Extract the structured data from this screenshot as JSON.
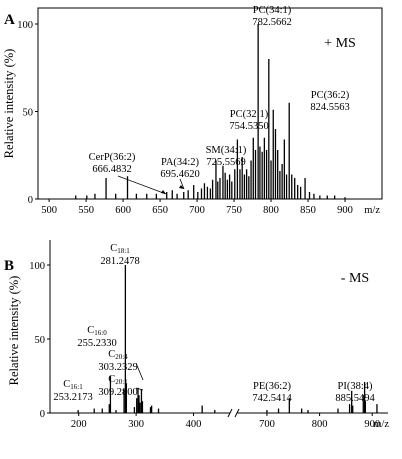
{
  "chart_data": [
    {
      "type": "bar",
      "panel": "A",
      "mode_label": "+ MS",
      "ylabel": "Relative intensity (%)",
      "xlabel": "m/z",
      "xlim": [
        485,
        950
      ],
      "ylim": [
        0,
        100
      ],
      "x_ticks": [
        500,
        550,
        600,
        650,
        700,
        750,
        800,
        850,
        900
      ],
      "y_ticks": [
        0,
        50,
        100
      ],
      "peaks": [
        {
          "mz": 536,
          "rel": 2
        },
        {
          "mz": 551,
          "rel": 2
        },
        {
          "mz": 562,
          "rel": 3
        },
        {
          "mz": 577,
          "rel": 12
        },
        {
          "mz": 590,
          "rel": 3
        },
        {
          "mz": 606,
          "rel": 13
        },
        {
          "mz": 618,
          "rel": 3
        },
        {
          "mz": 632,
          "rel": 3
        },
        {
          "mz": 645,
          "rel": 3
        },
        {
          "mz": 659,
          "rel": 4
        },
        {
          "mz": 666.4832,
          "rel": 5
        },
        {
          "mz": 673,
          "rel": 3
        },
        {
          "mz": 682,
          "rel": 4
        },
        {
          "mz": 688,
          "rel": 5
        },
        {
          "mz": 695.462,
          "rel": 8
        },
        {
          "mz": 701,
          "rel": 4
        },
        {
          "mz": 706,
          "rel": 6
        },
        {
          "mz": 710,
          "rel": 9
        },
        {
          "mz": 714,
          "rel": 7
        },
        {
          "mz": 718,
          "rel": 6
        },
        {
          "mz": 721,
          "rel": 11
        },
        {
          "mz": 725.5569,
          "rel": 22
        },
        {
          "mz": 728,
          "rel": 10
        },
        {
          "mz": 731,
          "rel": 12
        },
        {
          "mz": 735,
          "rel": 19
        },
        {
          "mz": 738,
          "rel": 15
        },
        {
          "mz": 741,
          "rel": 11
        },
        {
          "mz": 744,
          "rel": 14
        },
        {
          "mz": 747,
          "rel": 10
        },
        {
          "mz": 751,
          "rel": 17
        },
        {
          "mz": 754.535,
          "rel": 34
        },
        {
          "mz": 758,
          "rel": 17
        },
        {
          "mz": 761,
          "rel": 24
        },
        {
          "mz": 764,
          "rel": 14
        },
        {
          "mz": 767,
          "rel": 17
        },
        {
          "mz": 770,
          "rel": 13
        },
        {
          "mz": 773,
          "rel": 22
        },
        {
          "mz": 776,
          "rel": 35
        },
        {
          "mz": 779,
          "rel": 28
        },
        {
          "mz": 782.5662,
          "rel": 100
        },
        {
          "mz": 785,
          "rel": 30
        },
        {
          "mz": 788,
          "rel": 27
        },
        {
          "mz": 791,
          "rel": 35
        },
        {
          "mz": 794,
          "rel": 28
        },
        {
          "mz": 797,
          "rel": 80
        },
        {
          "mz": 800,
          "rel": 22
        },
        {
          "mz": 803,
          "rel": 51
        },
        {
          "mz": 806,
          "rel": 40
        },
        {
          "mz": 809,
          "rel": 28
        },
        {
          "mz": 812,
          "rel": 16
        },
        {
          "mz": 815,
          "rel": 20
        },
        {
          "mz": 818,
          "rel": 34
        },
        {
          "mz": 821,
          "rel": 14
        },
        {
          "mz": 824.5563,
          "rel": 55
        },
        {
          "mz": 828,
          "rel": 14
        },
        {
          "mz": 832,
          "rel": 12
        },
        {
          "mz": 836,
          "rel": 8
        },
        {
          "mz": 840,
          "rel": 7
        },
        {
          "mz": 846,
          "rel": 12
        },
        {
          "mz": 852,
          "rel": 4
        },
        {
          "mz": 858,
          "rel": 3
        },
        {
          "mz": 866,
          "rel": 2
        },
        {
          "mz": 876,
          "rel": 2
        },
        {
          "mz": 886,
          "rel": 2
        },
        {
          "mz": 900,
          "rel": 1
        }
      ],
      "annotations": [
        {
          "lines": [
            "PC(34:1)",
            "782.5662"
          ]
        },
        {
          "lines": [
            "PC(36:2)",
            "824.5563"
          ]
        },
        {
          "lines": [
            "PC(32:1)",
            "754.5350"
          ]
        },
        {
          "lines": [
            "SM(34:1)",
            "725.5569"
          ]
        },
        {
          "lines": [
            "PA(34:2)",
            "695.4620"
          ]
        },
        {
          "lines": [
            "CerP(36:2)",
            "666.4832"
          ]
        }
      ]
    },
    {
      "type": "bar",
      "panel": "B",
      "mode_label": "- MS",
      "ylabel": "Relative intensity (%)",
      "xlabel": "m/z",
      "axis_break": true,
      "segments": [
        {
          "xlim": [
            150,
            460
          ],
          "ticks": [
            200,
            300,
            400
          ]
        },
        {
          "xlim": [
            645,
            930
          ],
          "ticks": [
            700,
            800,
            900
          ]
        }
      ],
      "ylim": [
        0,
        100
      ],
      "y_ticks": [
        0,
        50,
        100
      ],
      "peaks": [
        {
          "mz": 199,
          "rel": 2
        },
        {
          "mz": 227,
          "rel": 3
        },
        {
          "mz": 241,
          "rel": 3
        },
        {
          "mz": 253.2173,
          "rel": 6
        },
        {
          "mz": 255.233,
          "rel": 25
        },
        {
          "mz": 265,
          "rel": 2
        },
        {
          "mz": 279,
          "rel": 16
        },
        {
          "mz": 281.2478,
          "rel": 100
        },
        {
          "mz": 283,
          "rel": 20
        },
        {
          "mz": 297,
          "rel": 4
        },
        {
          "mz": 301,
          "rel": 10
        },
        {
          "mz": 303.2329,
          "rel": 17
        },
        {
          "mz": 305,
          "rel": 12
        },
        {
          "mz": 307,
          "rel": 7
        },
        {
          "mz": 309.28,
          "rel": 16
        },
        {
          "mz": 311,
          "rel": 8
        },
        {
          "mz": 325,
          "rel": 4
        },
        {
          "mz": 327,
          "rel": 5
        },
        {
          "mz": 339,
          "rel": 3
        },
        {
          "mz": 415,
          "rel": 5
        },
        {
          "mz": 437,
          "rel": 2
        },
        {
          "mz": 700,
          "rel": 2
        },
        {
          "mz": 722,
          "rel": 3
        },
        {
          "mz": 742.5414,
          "rel": 10
        },
        {
          "mz": 766,
          "rel": 3
        },
        {
          "mz": 778,
          "rel": 2
        },
        {
          "mz": 835,
          "rel": 3
        },
        {
          "mz": 857,
          "rel": 6
        },
        {
          "mz": 861,
          "rel": 15
        },
        {
          "mz": 863,
          "rel": 5
        },
        {
          "mz": 883,
          "rel": 12
        },
        {
          "mz": 885.5494,
          "rel": 21
        },
        {
          "mz": 887,
          "rel": 8
        },
        {
          "mz": 909,
          "rel": 6
        }
      ],
      "annotations": [
        {
          "prefix": "C",
          "sub": "18:1",
          "value": "281.2478"
        },
        {
          "prefix": "C",
          "sub": "16:0",
          "value": "255.2330"
        },
        {
          "prefix": "C",
          "sub": "20:4",
          "value": "303.2329"
        },
        {
          "prefix": "C",
          "sub": "20:1",
          "value": "309.2800"
        },
        {
          "prefix": "C",
          "sub": "16:1",
          "value": "253.2173"
        },
        {
          "lines": [
            "PE(36:2)",
            "742.5414"
          ]
        },
        {
          "lines": [
            "PI(38:4)",
            "885.5494"
          ]
        }
      ]
    }
  ]
}
